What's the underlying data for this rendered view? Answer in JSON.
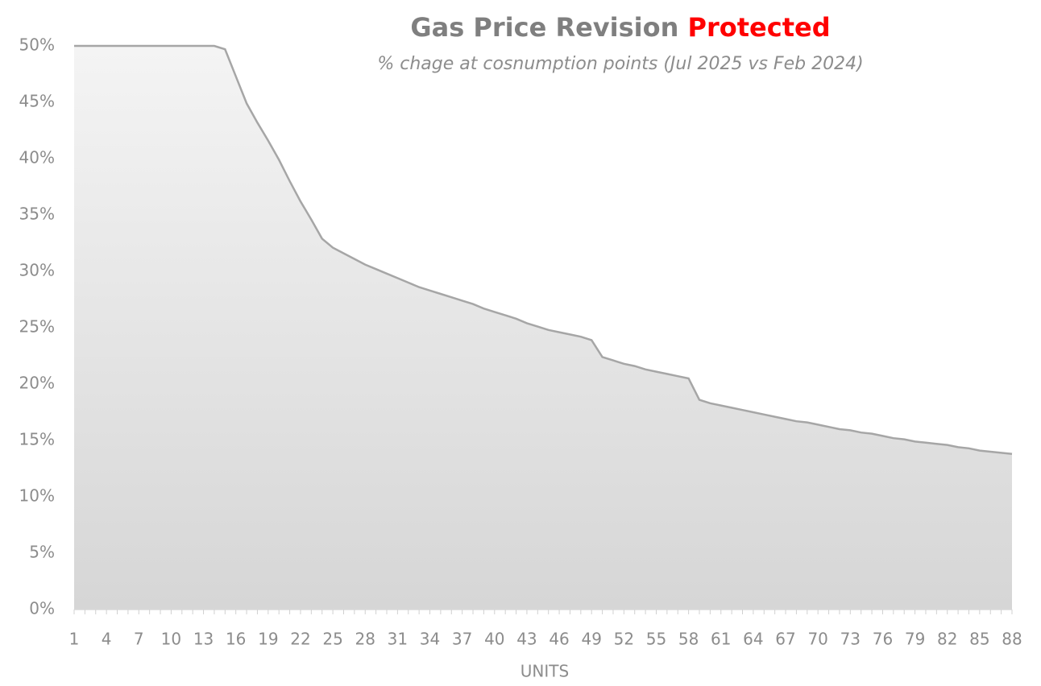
{
  "chart_data": {
    "type": "area",
    "title": "Gas Price Revision",
    "title_highlight": "Protected",
    "title_highlight_color": "#ff0000",
    "subtitle": "% chage at cosnumption points (Jul 2025 vs Feb 2024)",
    "x_label": "UNITS",
    "categories": [
      1,
      null,
      null,
      4,
      null,
      null,
      7,
      null,
      null,
      10,
      null,
      null,
      13,
      null,
      null,
      16,
      null,
      null,
      19,
      null,
      null,
      22,
      null,
      null,
      25,
      null,
      null,
      28,
      null,
      null,
      31,
      null,
      null,
      34,
      null,
      null,
      37,
      null,
      null,
      40,
      null,
      null,
      43,
      null,
      null,
      46,
      null,
      null,
      49,
      null,
      null,
      52,
      null,
      null,
      55,
      null,
      null,
      58,
      null,
      null,
      61,
      null,
      null,
      64,
      null,
      null,
      67,
      null,
      null,
      70,
      null,
      null,
      73,
      null,
      null,
      76,
      null,
      null,
      79,
      null,
      null,
      82,
      null,
      null,
      85,
      null,
      null,
      88
    ],
    "values": [
      50,
      50,
      50,
      50,
      50,
      50,
      50,
      50,
      50,
      50,
      50,
      50,
      50,
      50,
      49.7,
      47.3,
      44.9,
      43.2,
      41.6,
      39.9,
      38.0,
      36.2,
      34.6,
      32.9,
      32.1,
      31.6,
      31.1,
      30.6,
      30.2,
      29.8,
      29.4,
      29.0,
      28.6,
      28.3,
      28.0,
      27.7,
      27.4,
      27.1,
      26.7,
      26.4,
      26.1,
      25.8,
      25.4,
      25.1,
      24.8,
      24.6,
      24.4,
      24.2,
      23.9,
      22.4,
      22.1,
      21.8,
      21.6,
      21.3,
      21.1,
      20.9,
      20.7,
      20.5,
      18.6,
      18.3,
      18.1,
      17.9,
      17.7,
      17.5,
      17.3,
      17.1,
      16.9,
      16.7,
      16.6,
      16.4,
      16.2,
      16.0,
      15.9,
      15.7,
      15.6,
      15.4,
      15.2,
      15.1,
      14.9,
      14.8,
      14.7,
      14.6,
      14.4,
      14.3,
      14.1,
      14.0,
      13.9,
      13.8
    ],
    "color": "#a6a6a6",
    "ylim": [
      0,
      50
    ],
    "yticks": [
      {
        "value": 0,
        "label": "0%"
      },
      {
        "value": 5,
        "label": "5%"
      },
      {
        "value": 10,
        "label": "10%"
      },
      {
        "value": 15,
        "label": "15%"
      },
      {
        "value": 20,
        "label": "20%"
      },
      {
        "value": 25,
        "label": "25%"
      },
      {
        "value": 30,
        "label": "30%"
      },
      {
        "value": 35,
        "label": "35%"
      },
      {
        "value": 40,
        "label": "40%"
      },
      {
        "value": 45,
        "label": "45%"
      },
      {
        "value": 50,
        "label": "50%"
      }
    ],
    "grid": false
  }
}
